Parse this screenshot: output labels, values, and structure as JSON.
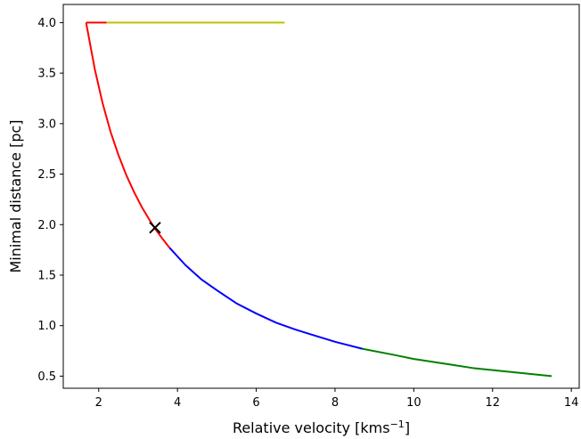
{
  "chart_data": {
    "type": "line",
    "title": "",
    "xlabel": "Relative velocity [kms",
    "xlabel_sup": "−1",
    "xlabel_end": "]",
    "ylabel": "Minimal distance [pc]",
    "xlim": [
      1.1,
      14.2
    ],
    "ylim": [
      0.38,
      4.18
    ],
    "x_ticks": [
      2,
      4,
      6,
      8,
      10,
      12,
      14
    ],
    "y_ticks": [
      0.5,
      1.0,
      1.5,
      2.0,
      2.5,
      3.0,
      3.5,
      4.0
    ],
    "x_tick_labels": [
      "2",
      "4",
      "6",
      "8",
      "10",
      "12",
      "14"
    ],
    "y_tick_labels": [
      "0.5",
      "1.0",
      "1.5",
      "2.0",
      "2.5",
      "3.0",
      "3.5",
      "4.0"
    ],
    "grid": false,
    "series": [
      {
        "color": "#ff0000",
        "points": [
          [
            1.68,
            4.0
          ],
          [
            2.2,
            4.0
          ]
        ]
      },
      {
        "color": "#bfbf00",
        "points": [
          [
            2.2,
            4.0
          ],
          [
            6.72,
            4.0
          ]
        ]
      },
      {
        "color": "#ff0000",
        "points": [
          [
            1.68,
            4.0
          ],
          [
            1.9,
            3.54
          ],
          [
            2.1,
            3.2
          ],
          [
            2.3,
            2.92
          ],
          [
            2.5,
            2.69
          ],
          [
            2.7,
            2.49
          ],
          [
            2.9,
            2.32
          ],
          [
            3.1,
            2.17
          ],
          [
            3.3,
            2.04
          ],
          [
            3.43,
            1.96
          ],
          [
            3.6,
            1.87
          ],
          [
            3.8,
            1.77
          ]
        ]
      },
      {
        "color": "#0000ff",
        "points": [
          [
            3.8,
            1.77
          ],
          [
            4.2,
            1.6
          ],
          [
            4.6,
            1.46
          ],
          [
            5.0,
            1.35
          ],
          [
            5.5,
            1.22
          ],
          [
            6.0,
            1.12
          ],
          [
            6.5,
            1.03
          ],
          [
            7.0,
            0.96
          ],
          [
            7.5,
            0.9
          ],
          [
            8.0,
            0.84
          ],
          [
            8.7,
            0.77
          ]
        ]
      },
      {
        "color": "#008000",
        "points": [
          [
            8.7,
            0.77
          ],
          [
            9.5,
            0.71
          ],
          [
            10.0,
            0.67
          ],
          [
            10.5,
            0.64
          ],
          [
            11.0,
            0.61
          ],
          [
            11.5,
            0.58
          ],
          [
            12.0,
            0.56
          ],
          [
            12.5,
            0.54
          ],
          [
            13.0,
            0.52
          ],
          [
            13.5,
            0.5
          ]
        ]
      }
    ],
    "markers": [
      {
        "symbol": "x",
        "color": "#000000",
        "x": 3.43,
        "y": 1.97
      }
    ]
  }
}
